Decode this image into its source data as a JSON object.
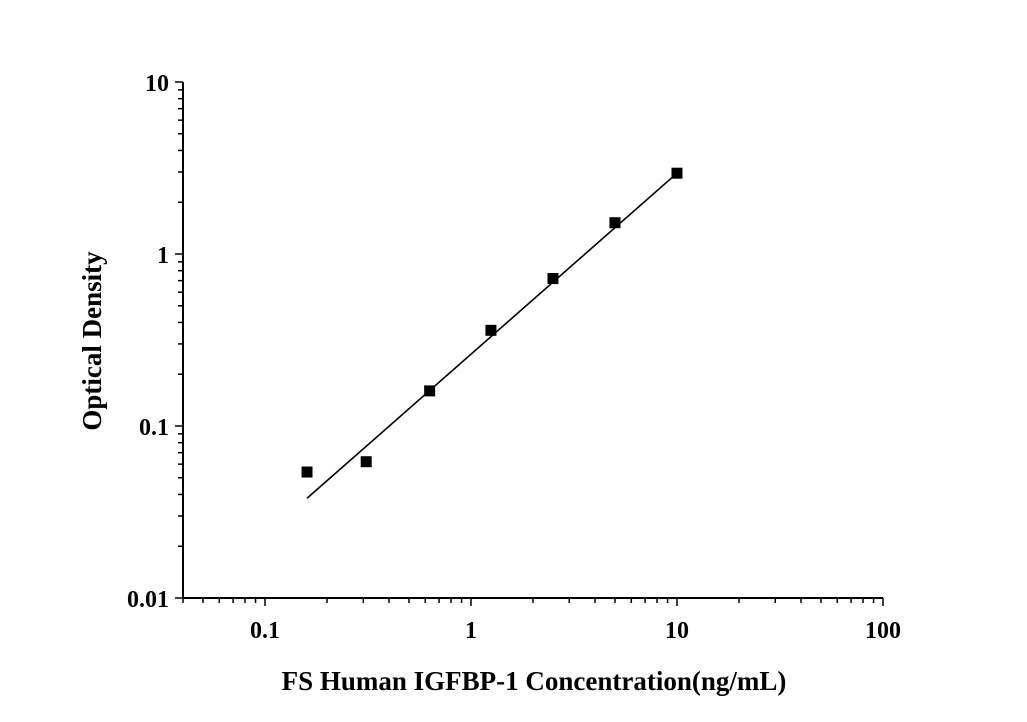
{
  "chart_data": {
    "type": "scatter",
    "title": "",
    "xlabel": "FS Human IGFBP-1 Concentration(ng/mL)",
    "ylabel": "Optical Density",
    "x_scale": "log",
    "y_scale": "log",
    "xlim": [
      0.04,
      100
    ],
    "ylim": [
      0.01,
      10
    ],
    "x_ticks": [
      {
        "value": 0.1,
        "label": "0.1"
      },
      {
        "value": 1,
        "label": "1"
      },
      {
        "value": 10,
        "label": "10"
      },
      {
        "value": 100,
        "label": "100"
      }
    ],
    "y_ticks": [
      {
        "value": 0.01,
        "label": "0.01"
      },
      {
        "value": 0.1,
        "label": "0.1"
      },
      {
        "value": 1,
        "label": "1"
      },
      {
        "value": 10,
        "label": "10"
      }
    ],
    "grid": false,
    "legend": "none",
    "series": [
      {
        "marker": "square",
        "color": "#000000",
        "x": [
          0.16,
          0.31,
          0.63,
          1.25,
          2.5,
          5,
          10
        ],
        "y": [
          0.054,
          0.062,
          0.16,
          0.36,
          0.72,
          1.52,
          2.95
        ]
      }
    ],
    "fit_line": {
      "color": "#000000",
      "x": [
        0.16,
        10
      ],
      "y": [
        0.038,
        2.95
      ]
    }
  }
}
